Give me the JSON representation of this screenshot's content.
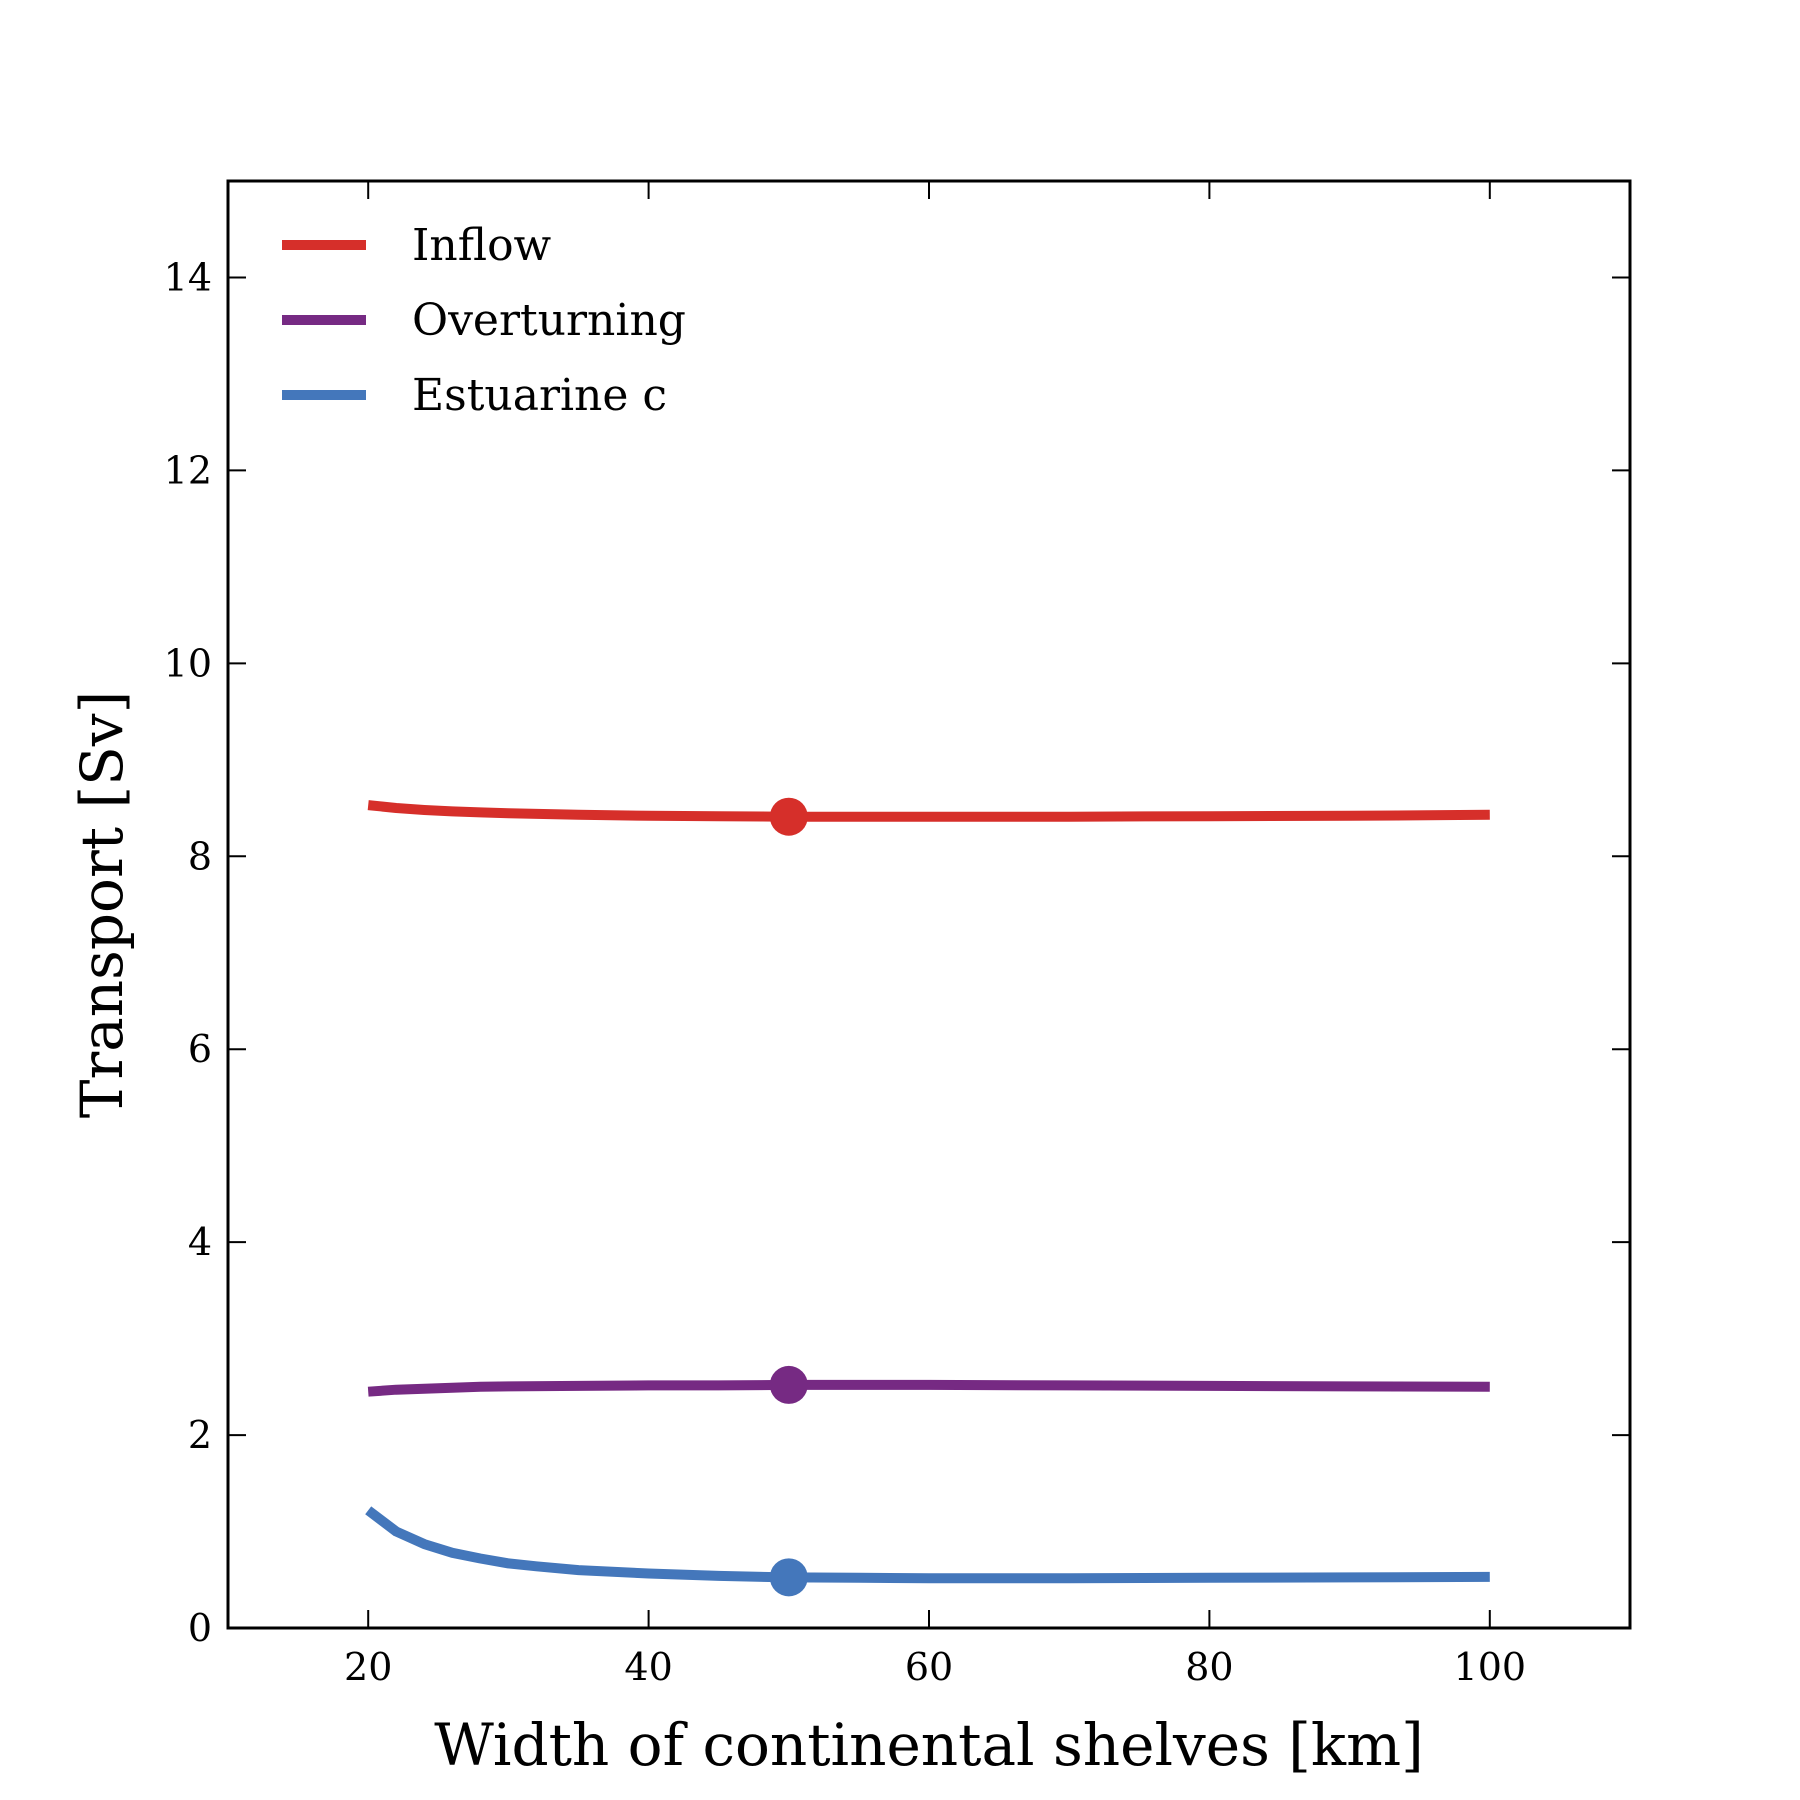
{
  "chart_data": {
    "type": "line",
    "title": "",
    "xlabel": "Width of continental shelves [km]",
    "ylabel": "Transport [Sv]",
    "xlim": [
      10,
      110
    ],
    "ylim": [
      0,
      15
    ],
    "xticks": [
      20,
      40,
      60,
      80,
      100
    ],
    "yticks": [
      0,
      2,
      4,
      6,
      8,
      10,
      12,
      14
    ],
    "grid": false,
    "legend": "top-left",
    "series": [
      {
        "name": "Inflow",
        "color": "#d62f2a",
        "x": [
          20,
          22,
          24,
          26,
          28,
          30,
          35,
          40,
          45,
          50,
          60,
          70,
          80,
          90,
          100
        ],
        "y": [
          8.53,
          8.5,
          8.48,
          8.465,
          8.455,
          8.445,
          8.43,
          8.42,
          8.415,
          8.41,
          8.41,
          8.41,
          8.415,
          8.42,
          8.43
        ],
        "marker": {
          "x": 50,
          "y": 8.41
        }
      },
      {
        "name": "Overturning",
        "color": "#762a83",
        "x": [
          20,
          22,
          24,
          26,
          28,
          30,
          35,
          40,
          45,
          50,
          60,
          70,
          80,
          90,
          100
        ],
        "y": [
          2.45,
          2.47,
          2.48,
          2.49,
          2.5,
          2.505,
          2.51,
          2.515,
          2.515,
          2.52,
          2.52,
          2.515,
          2.51,
          2.505,
          2.5
        ],
        "marker": {
          "x": 50,
          "y": 2.52
        }
      },
      {
        "name": "Estuarine c",
        "color": "#4477bb",
        "x": [
          20,
          22,
          24,
          26,
          28,
          30,
          32,
          35,
          40,
          45,
          50,
          55,
          60,
          70,
          80,
          90,
          100
        ],
        "y": [
          1.22,
          1.0,
          0.87,
          0.78,
          0.72,
          0.67,
          0.64,
          0.6,
          0.565,
          0.54,
          0.525,
          0.52,
          0.515,
          0.515,
          0.52,
          0.525,
          0.53
        ],
        "marker": {
          "x": 50,
          "y": 0.525
        }
      }
    ]
  }
}
